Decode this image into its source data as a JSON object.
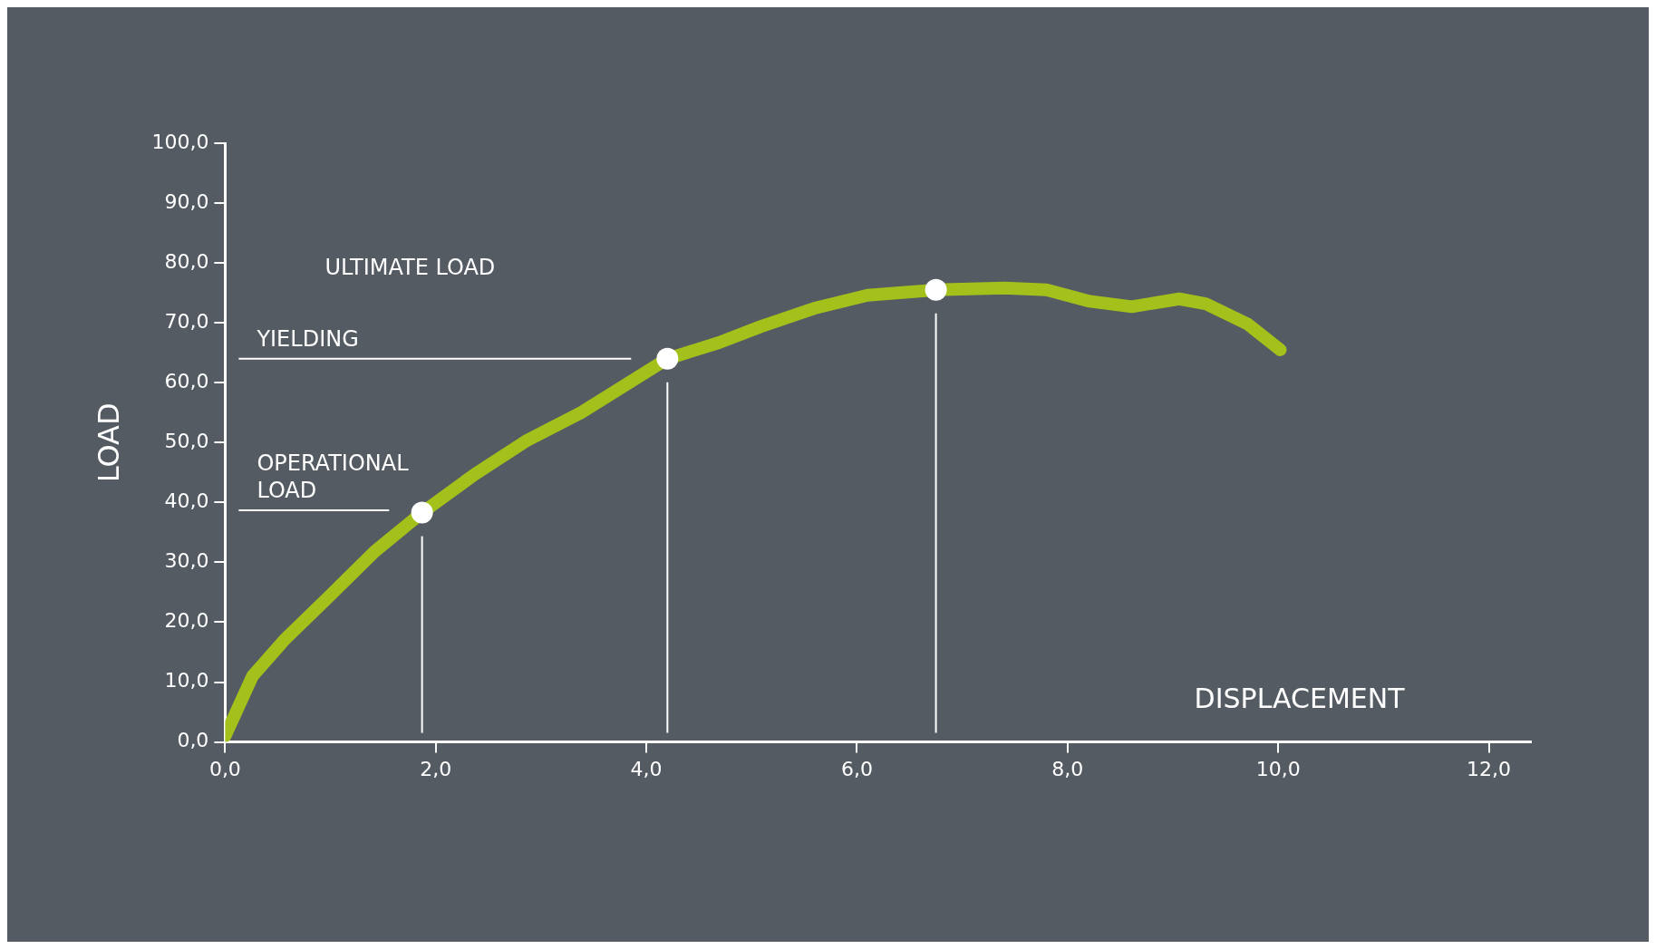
{
  "chart_data": {
    "type": "line",
    "xlabel": "DISPLACEMENT",
    "ylabel": "LOAD",
    "annotations": [
      "ULTIMATE LOAD"
    ],
    "xlim": [
      0,
      12.4
    ],
    "ylim": [
      0,
      100
    ],
    "xticks": [
      {
        "value": 0,
        "label": "0,0"
      },
      {
        "value": 2,
        "label": "2,0"
      },
      {
        "value": 4,
        "label": "4,0"
      },
      {
        "value": 6,
        "label": "6,0"
      },
      {
        "value": 8,
        "label": "8,0"
      },
      {
        "value": 10,
        "label": "10,0"
      },
      {
        "value": 12,
        "label": "12,0"
      }
    ],
    "yticks": [
      {
        "value": 0,
        "label": "0,0"
      },
      {
        "value": 10,
        "label": "10,0"
      },
      {
        "value": 20,
        "label": "20,0"
      },
      {
        "value": 30,
        "label": "30,0"
      },
      {
        "value": 40,
        "label": "40,0"
      },
      {
        "value": 50,
        "label": "50,0"
      },
      {
        "value": 60,
        "label": "60,0"
      },
      {
        "value": 70,
        "label": "70,0"
      },
      {
        "value": 80,
        "label": "80,0"
      },
      {
        "value": 90,
        "label": "90,0"
      },
      {
        "value": 100,
        "label": "100,0"
      }
    ],
    "grid": false,
    "legend": false,
    "series": [
      {
        "color": "#a4c11b",
        "marker": "none",
        "x": [
          0,
          0.26,
          0.56,
          0.97,
          1.42,
          1.87,
          2.37,
          2.87,
          3.38,
          3.78,
          4.2,
          4.69,
          5.09,
          5.59,
          6.1,
          6.75,
          7.4,
          7.8,
          8.21,
          8.61,
          9.06,
          9.31,
          9.71,
          10.02
        ],
        "values": [
          1,
          11,
          17,
          24,
          31.8,
          38.3,
          44.7,
          50.4,
          55,
          59.4,
          64,
          66.7,
          69.4,
          72.4,
          74.6,
          75.5,
          75.8,
          75.5,
          73.6,
          72.7,
          74,
          73.2,
          69.8,
          65.5
        ]
      },
      {
        "type": "scatter",
        "color": "#ffffff",
        "marker": "circle",
        "x": [
          1.87,
          4.2,
          6.75
        ],
        "values": [
          38.3,
          64,
          75.5
        ]
      }
    ],
    "ref_lines": [
      {
        "axis": "y",
        "value": 64,
        "label": "YIELDING",
        "color": "#ffffff"
      },
      {
        "axis": "y",
        "value": 38.7,
        "label": "OPERATIONAL LOAD",
        "color": "#ffffff"
      },
      {
        "axis": "x",
        "value": 1.87,
        "color": "#ffffff"
      },
      {
        "axis": "x",
        "value": 4.2,
        "color": "#ffffff"
      },
      {
        "axis": "x",
        "value": 6.75,
        "color": "#ffffff"
      }
    ]
  }
}
